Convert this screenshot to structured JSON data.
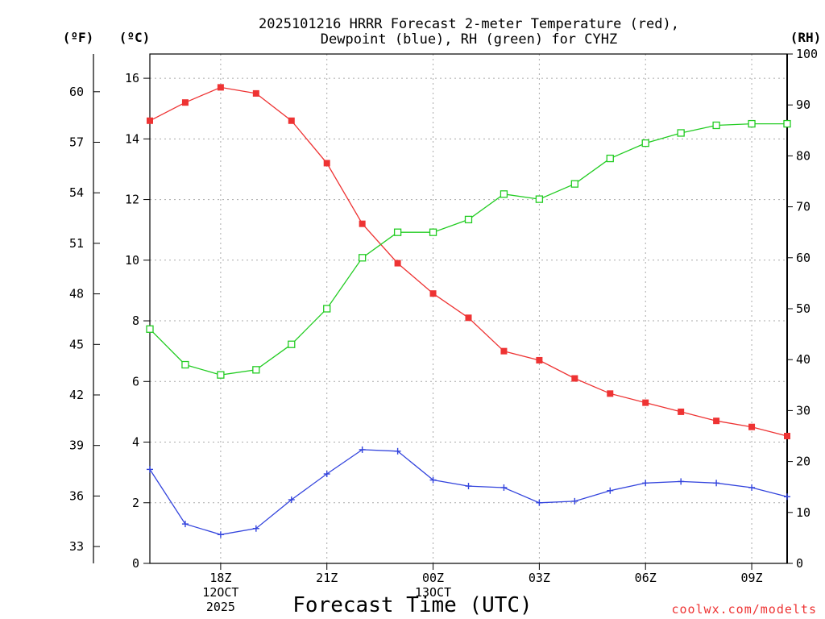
{
  "chart_data": {
    "type": "line",
    "title_lines": [
      "2025101216 HRRR Forecast 2-meter Temperature (red),",
      "Dewpoint (blue), RH (green) for CYHZ"
    ],
    "xlabel": "Forecast Time (UTC)",
    "credit": "coolwx.com/modelts",
    "units": {
      "fahrenheit": "(ºF)",
      "celsius": "(ºC)",
      "rh": "(RH)"
    },
    "x_hours": [
      16,
      17,
      18,
      19,
      20,
      21,
      22,
      23,
      24,
      25,
      26,
      27,
      28,
      29,
      30,
      31,
      32,
      33,
      34
    ],
    "x_range": [
      16,
      34
    ],
    "x_ticks": [
      {
        "hour": 18,
        "lines": [
          "18Z",
          "12OCT",
          "2025"
        ]
      },
      {
        "hour": 21,
        "lines": [
          "21Z"
        ]
      },
      {
        "hour": 24,
        "lines": [
          "00Z",
          "13OCT"
        ]
      },
      {
        "hour": 27,
        "lines": [
          "03Z"
        ]
      },
      {
        "hour": 30,
        "lines": [
          "06Z"
        ]
      },
      {
        "hour": 33,
        "lines": [
          "09Z"
        ]
      }
    ],
    "y_celsius": {
      "range": [
        0,
        16.8
      ],
      "ticks": [
        0,
        2,
        4,
        6,
        8,
        10,
        12,
        14,
        16
      ]
    },
    "y_fahrenheit": {
      "range": [
        32,
        62.24
      ],
      "ticks": [
        33,
        36,
        39,
        42,
        45,
        48,
        51,
        54,
        57,
        60
      ]
    },
    "y_rh": {
      "range": [
        0,
        100
      ],
      "ticks": [
        0,
        10,
        20,
        30,
        40,
        50,
        60,
        70,
        80,
        90,
        100
      ]
    },
    "series": [
      {
        "name": "Temperature",
        "axis": "celsius",
        "color": "#ee3333",
        "marker": "filled-square",
        "values": [
          14.6,
          15.2,
          15.7,
          15.5,
          14.6,
          13.2,
          11.2,
          9.9,
          8.9,
          8.1,
          7.0,
          6.7,
          6.1,
          5.6,
          5.3,
          5.0,
          4.7,
          4.5,
          4.2
        ]
      },
      {
        "name": "Dewpoint",
        "axis": "celsius",
        "color": "#3344dd",
        "marker": "plus",
        "values": [
          3.1,
          1.3,
          0.95,
          1.15,
          2.1,
          2.95,
          3.75,
          3.7,
          2.75,
          2.55,
          2.5,
          2.0,
          2.05,
          2.4,
          2.65,
          2.7,
          2.65,
          2.5,
          2.2
        ]
      },
      {
        "name": "RH",
        "axis": "rh",
        "color": "#22cc22",
        "marker": "open-square",
        "values": [
          46,
          39,
          37,
          38,
          43,
          50,
          60,
          65,
          65,
          67.5,
          72.5,
          71.5,
          74.5,
          79.5,
          82.5,
          84.5,
          86,
          86.3,
          86.3
        ]
      }
    ]
  }
}
